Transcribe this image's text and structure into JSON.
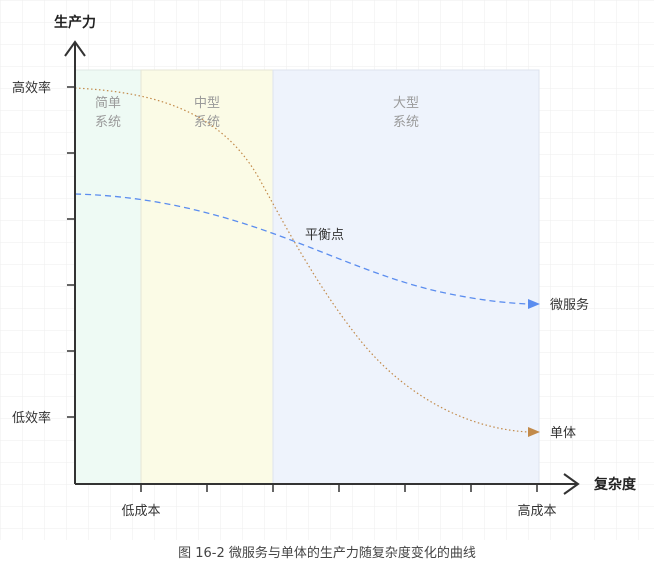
{
  "axes": {
    "y_title": "生产力",
    "x_title": "复杂度",
    "y_high": "高效率",
    "y_low": "低效率",
    "x_low": "低成本",
    "x_high": "高成本"
  },
  "regions": [
    {
      "line1": "简单",
      "line2": "系统",
      "fill": "#eefaf4"
    },
    {
      "line1": "中型",
      "line2": "系统",
      "fill": "#fbfbe6"
    },
    {
      "line1": "大型",
      "line2": "系统",
      "fill": "#eef3fc"
    }
  ],
  "curves": {
    "microservice": {
      "label": "微服务",
      "color": "#5b8def"
    },
    "monolith": {
      "label": "单体",
      "color": "#c28a4a"
    }
  },
  "balance_label": "平衡点",
  "caption": "图 16-2 微服务与单体的生产力随复杂度变化的曲线"
}
